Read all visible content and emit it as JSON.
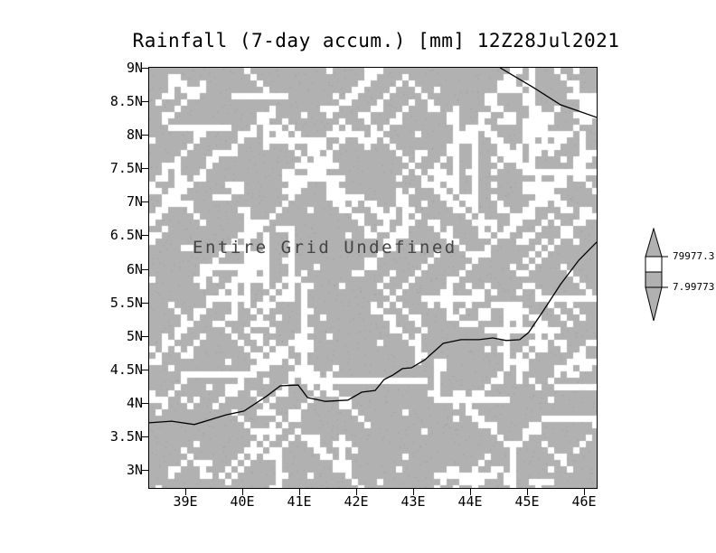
{
  "title": "Rainfall (7-day accum.) [mm] 12Z28Jul2021",
  "annotation": "Entire Grid Undefined",
  "axes": {
    "y_ticks": [
      "9N",
      "8.5N",
      "8N",
      "7.5N",
      "7N",
      "6.5N",
      "6N",
      "5.5N",
      "5N",
      "4.5N",
      "4N",
      "3.5N",
      "3N"
    ],
    "x_ticks": [
      "39E",
      "40E",
      "41E",
      "42E",
      "43E",
      "44E",
      "45E",
      "46E"
    ]
  },
  "colorbar": {
    "labels": [
      "79977.3",
      "7.99773"
    ]
  },
  "colors": {
    "grid_fill": "#b1b1b1",
    "speckle_dark": "#9c9c9c",
    "undefined_white": "#ffffff",
    "annotation_text": "#454545",
    "line": "#000000"
  },
  "chart_data": {
    "type": "heatmap",
    "title": "Rainfall (7-day accum.) [mm] 12Z28Jul2021",
    "variable": "Rainfall (7-day accum.)",
    "units": "mm",
    "valid_time": "12Z28Jul2021",
    "x_tick_labels": [
      "39E",
      "40E",
      "41E",
      "42E",
      "43E",
      "44E",
      "45E",
      "46E"
    ],
    "y_tick_labels": [
      "9N",
      "8.5N",
      "8N",
      "7.5N",
      "7N",
      "6.5N",
      "6N",
      "5.5N",
      "5N",
      "4.5N",
      "4N",
      "3.5N",
      "3N"
    ],
    "values": null,
    "status": "Entire Grid Undefined",
    "annotation": "Entire Grid Undefined",
    "colorbar_labels": [
      "79977.3",
      "7.99773"
    ],
    "legend_position": "right",
    "grid": false,
    "map_lines": [
      [
        [
          0.0,
          0.845
        ],
        [
          0.05,
          0.841
        ],
        [
          0.101,
          0.849
        ],
        [
          0.172,
          0.826
        ],
        [
          0.212,
          0.817
        ],
        [
          0.263,
          0.781
        ],
        [
          0.293,
          0.757
        ],
        [
          0.333,
          0.755
        ],
        [
          0.354,
          0.785
        ],
        [
          0.394,
          0.794
        ],
        [
          0.444,
          0.791
        ],
        [
          0.475,
          0.772
        ],
        [
          0.505,
          0.768
        ],
        [
          0.525,
          0.742
        ],
        [
          0.545,
          0.731
        ],
        [
          0.566,
          0.716
        ],
        [
          0.586,
          0.714
        ],
        [
          0.616,
          0.695
        ],
        [
          0.657,
          0.656
        ],
        [
          0.697,
          0.647
        ],
        [
          0.737,
          0.647
        ],
        [
          0.768,
          0.643
        ],
        [
          0.798,
          0.649
        ],
        [
          0.828,
          0.647
        ],
        [
          0.848,
          0.63
        ],
        [
          0.879,
          0.581
        ],
        [
          0.919,
          0.516
        ],
        [
          0.96,
          0.458
        ],
        [
          1.0,
          0.415
        ]
      ],
      [
        [
          0.784,
          0.0
        ],
        [
          0.859,
          0.047
        ],
        [
          0.919,
          0.088
        ],
        [
          1.0,
          0.118
        ]
      ]
    ]
  }
}
